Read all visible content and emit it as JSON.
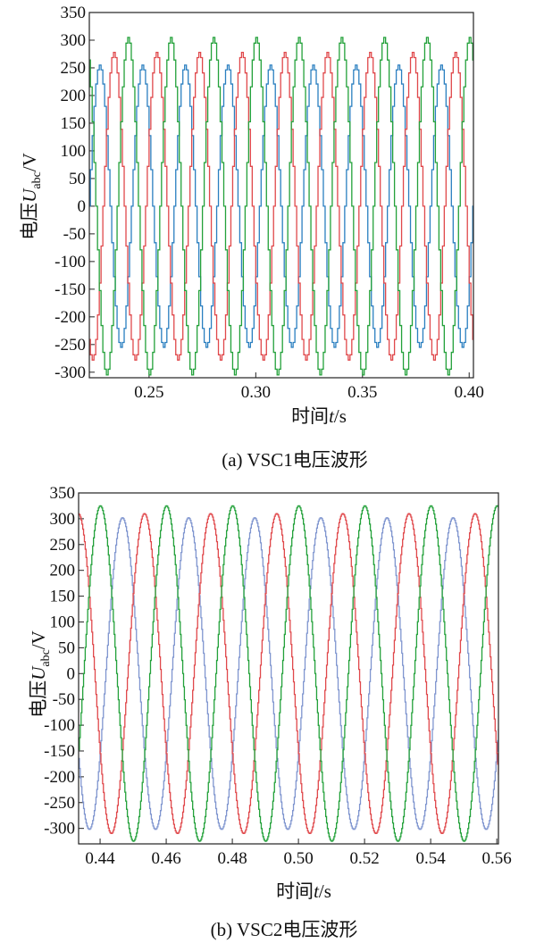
{
  "chart_data": [
    {
      "type": "line",
      "caption": "(a) VSC1电压波形",
      "xlabel_prefix": "时间",
      "xlabel_var": "t",
      "xlabel_unit": "/s",
      "ylabel_prefix": "电压",
      "ylabel_var": "U",
      "ylabel_sub": "abc",
      "ylabel_unit": "/V",
      "xlim": [
        0.222,
        0.402
      ],
      "ylim": [
        -310,
        350
      ],
      "xticks": [
        0.25,
        0.3,
        0.35,
        0.4
      ],
      "xtick_labels": [
        "0.25",
        "0.30",
        "0.35",
        "0.40"
      ],
      "yticks": [
        350,
        300,
        250,
        200,
        150,
        100,
        50,
        0,
        -50,
        -100,
        -150,
        -200,
        -250,
        -300
      ],
      "ytick_labels": [
        "350",
        "300",
        "250",
        "200",
        "150",
        "100",
        "50",
        "0",
        "-50",
        "-100",
        "-150",
        "-200",
        "-250",
        "-300"
      ],
      "frequency_hz": 50,
      "steps_per_cycle": 24,
      "series": [
        {
          "color": "#2a7fc0",
          "amplitude": 255,
          "phase_deg": -30
        },
        {
          "color": "#e0484b",
          "amplitude": 278,
          "phase_deg": -150
        },
        {
          "color": "#23a13a",
          "amplitude": 305,
          "phase_deg": 90
        }
      ]
    },
    {
      "type": "line",
      "caption": "(b) VSC2电压波形",
      "xlabel_prefix": "时间",
      "xlabel_var": "t",
      "xlabel_unit": "/s",
      "ylabel_prefix": "电压",
      "ylabel_var": "U",
      "ylabel_sub": "abc",
      "ylabel_unit": "/V",
      "xlim": [
        0.4335,
        0.5605
      ],
      "ylim": [
        -330,
        350
      ],
      "xticks": [
        0.44,
        0.46,
        0.48,
        0.5,
        0.52,
        0.54,
        0.56
      ],
      "xtick_labels": [
        "0.44",
        "0.46",
        "0.48",
        "0.50",
        "0.52",
        "0.54",
        "0.56"
      ],
      "yticks": [
        350,
        300,
        250,
        200,
        150,
        100,
        50,
        0,
        -50,
        -100,
        -150,
        -200,
        -250,
        -300
      ],
      "ytick_labels": [
        "350",
        "300",
        "250",
        "200",
        "150",
        "100",
        "50",
        "0",
        "-50",
        "-100",
        "-150",
        "-200",
        "-250",
        "-300"
      ],
      "frequency_hz": 50,
      "steps_per_cycle": 80,
      "series": [
        {
          "color": "#7f95cf",
          "amplitude": 302,
          "phase_deg": -30
        },
        {
          "color": "#e0484b",
          "amplitude": 310,
          "phase_deg": -150
        },
        {
          "color": "#23a13a",
          "amplitude": 325,
          "phase_deg": 90
        }
      ]
    }
  ]
}
